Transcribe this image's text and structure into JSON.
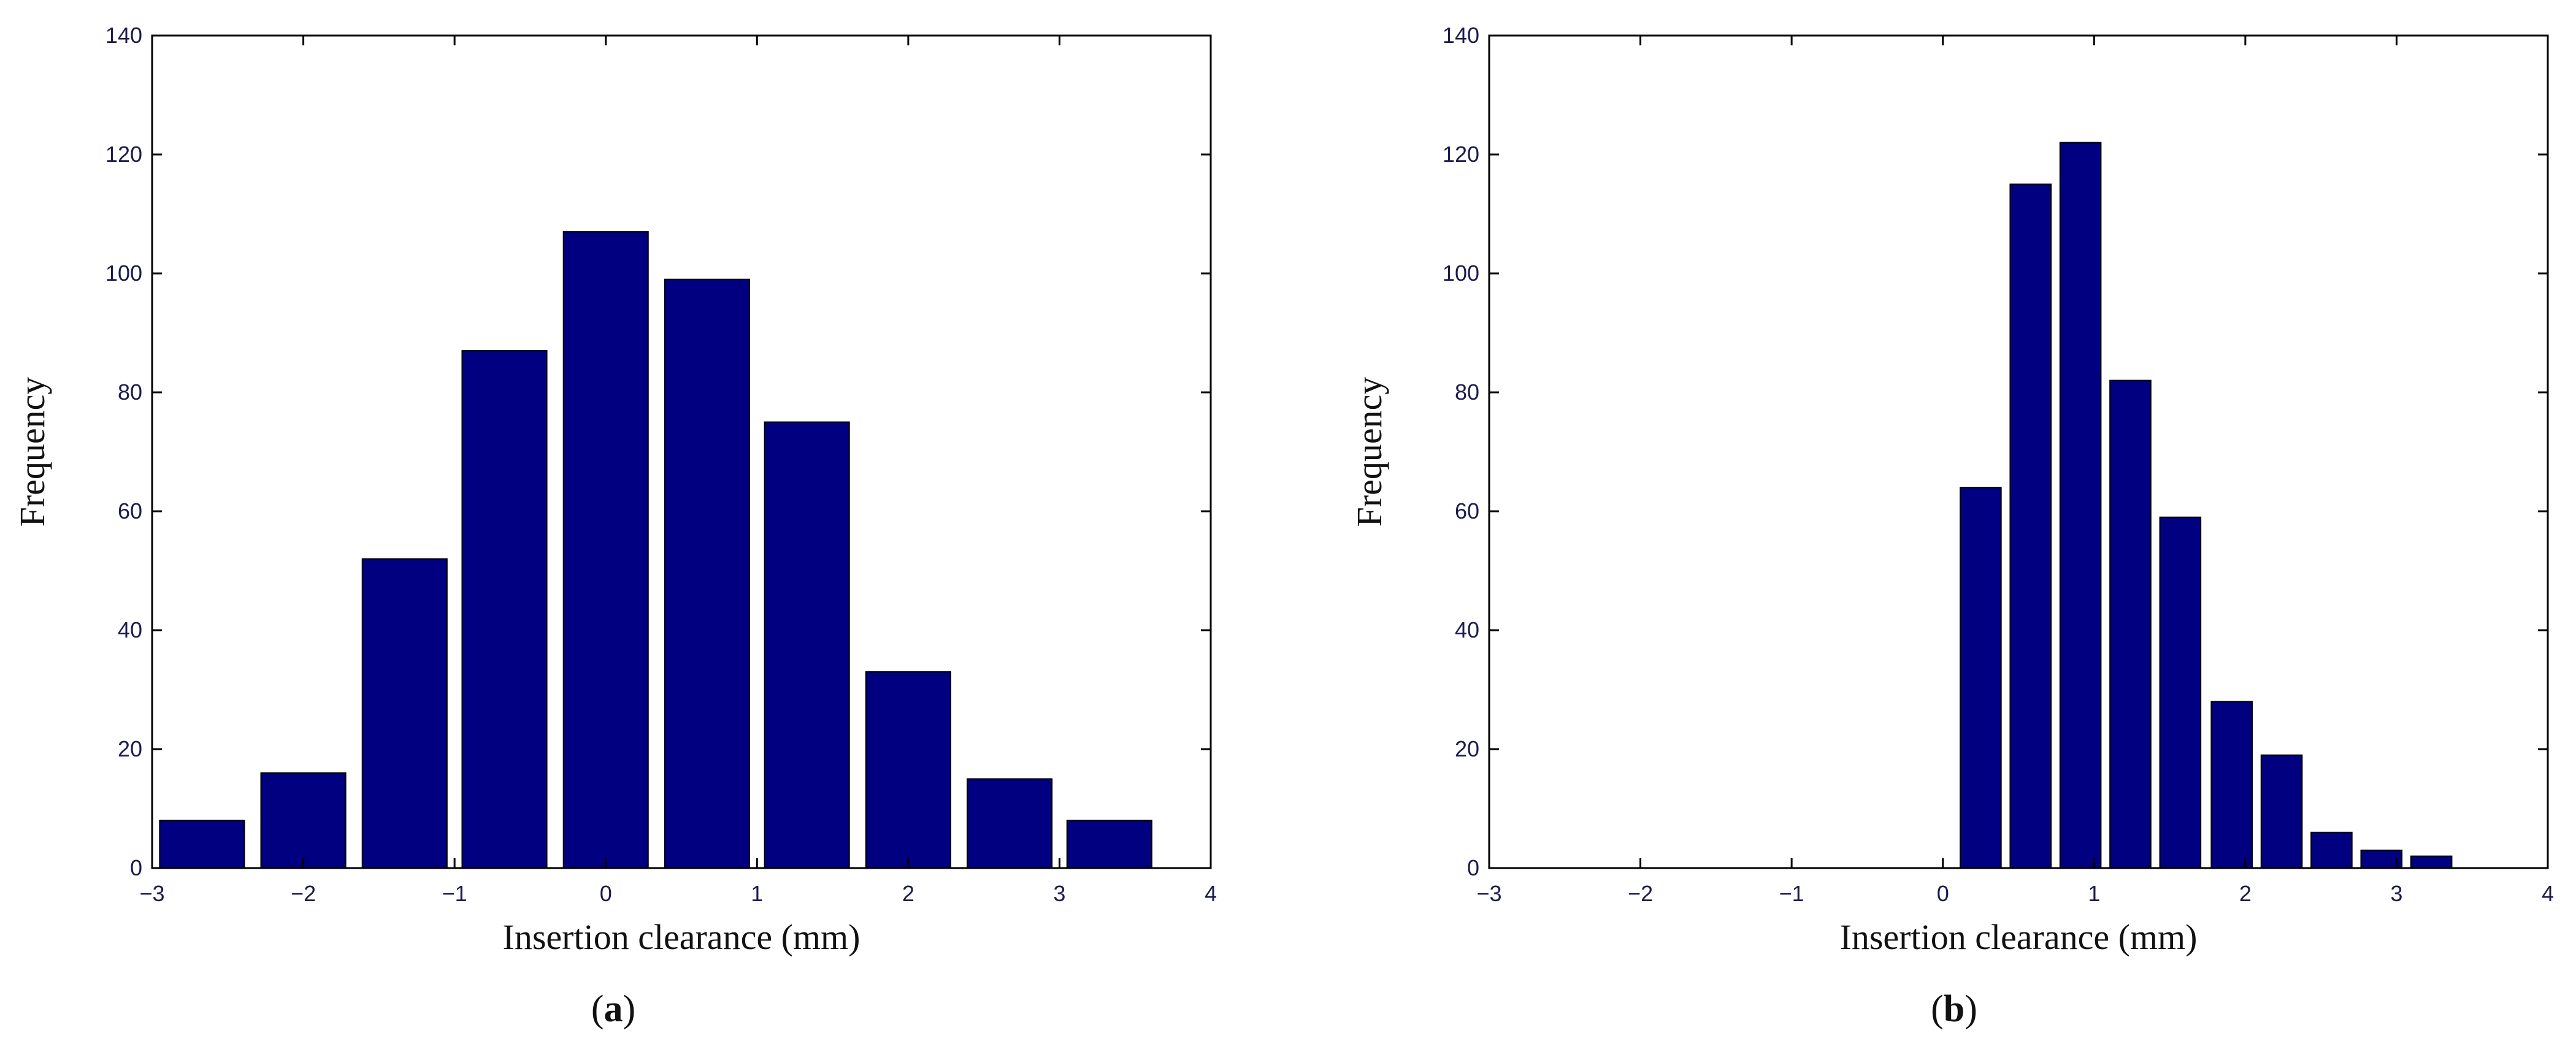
{
  "chart_data": [
    {
      "type": "bar",
      "panel_label": "a",
      "xlabel": "Insertion clearance (mm)",
      "ylabel": "Frequency",
      "xlim": [
        -3,
        4
      ],
      "ylim": [
        0,
        140
      ],
      "xticks": [
        -3,
        -2,
        -1,
        0,
        1,
        2,
        3,
        4
      ],
      "yticks": [
        0,
        20,
        40,
        60,
        80,
        100,
        120,
        140
      ],
      "bar_width": 0.56,
      "bar_color": "#000080",
      "x": [
        -2.67,
        -2.0,
        -1.33,
        -0.67,
        0.0,
        0.67,
        1.33,
        2.0,
        2.67,
        3.33
      ],
      "values": [
        8,
        16,
        52,
        87,
        107,
        99,
        75,
        33,
        15,
        8
      ]
    },
    {
      "type": "bar",
      "panel_label": "b",
      "xlabel": "Insertion clearance (mm)",
      "ylabel": "Frequency",
      "xlim": [
        -3,
        4
      ],
      "ylim": [
        0,
        140
      ],
      "xticks": [
        -3,
        -2,
        -1,
        0,
        1,
        2,
        3,
        4
      ],
      "yticks": [
        0,
        20,
        40,
        60,
        80,
        100,
        120,
        140
      ],
      "bar_width": 0.27,
      "bar_color": "#000080",
      "x": [
        0.25,
        0.58,
        0.91,
        1.24,
        1.57,
        1.91,
        2.24,
        2.57,
        2.9,
        3.23
      ],
      "values": [
        64,
        115,
        122,
        82,
        59,
        28,
        19,
        6,
        3,
        2
      ]
    }
  ],
  "colors": {
    "bar": "#000080",
    "tick_text": "#1c1c4e",
    "axis": "#000000"
  }
}
